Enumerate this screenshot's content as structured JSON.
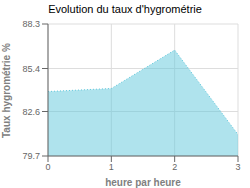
{
  "chart_data": {
    "type": "area",
    "title": "Evolution du taux d'hygrométrie",
    "x_label": "heure par heure",
    "y_label": "Taux hygrométrie %",
    "x": [
      0,
      1,
      2,
      3
    ],
    "values": [
      83.9,
      84.1,
      86.6,
      81.1
    ],
    "xlim": [
      0,
      3
    ],
    "ylim": [
      79.7,
      88.3
    ],
    "xticks": [
      0,
      1,
      2,
      3
    ],
    "yticks": [
      79.7,
      82.6,
      85.4,
      88.3
    ],
    "color": "#60c8dc",
    "line_style": "dotted",
    "grid": true
  }
}
